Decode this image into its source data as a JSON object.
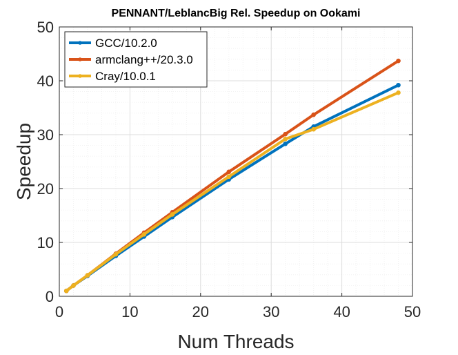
{
  "chart_data": {
    "type": "line",
    "title": "PENNANT/LeblancBig Rel. Speedup on Ookami",
    "xlabel": "Num Threads",
    "ylabel": "Speedup",
    "xlim": [
      0,
      50
    ],
    "ylim": [
      0,
      50
    ],
    "xticks": [
      0,
      10,
      20,
      30,
      40,
      50
    ],
    "yticks": [
      0,
      10,
      20,
      30,
      40,
      50
    ],
    "grid": true,
    "minor_grid": true,
    "legend_position": "top-left",
    "series": [
      {
        "name": "GCC/10.2.0",
        "color": "#0072BD",
        "x": [
          1,
          2,
          4,
          8,
          12,
          16,
          24,
          32,
          36,
          48
        ],
        "y": [
          1,
          2,
          3.8,
          7.5,
          11.1,
          14.7,
          21.7,
          28.3,
          31.5,
          39.2
        ]
      },
      {
        "name": "armclang++/20.3.0",
        "color": "#D95319",
        "x": [
          1,
          2,
          4,
          8,
          12,
          16,
          24,
          32,
          36,
          48
        ],
        "y": [
          1,
          2,
          3.9,
          7.9,
          11.8,
          15.6,
          23.1,
          30.1,
          33.7,
          43.7
        ]
      },
      {
        "name": "Cray/10.0.1",
        "color": "#EDB120",
        "x": [
          1,
          2,
          4,
          8,
          12,
          16,
          24,
          32,
          36,
          48
        ],
        "y": [
          1,
          2,
          3.9,
          7.8,
          11.5,
          15.2,
          22.2,
          29.2,
          31.0,
          37.8
        ]
      }
    ]
  }
}
